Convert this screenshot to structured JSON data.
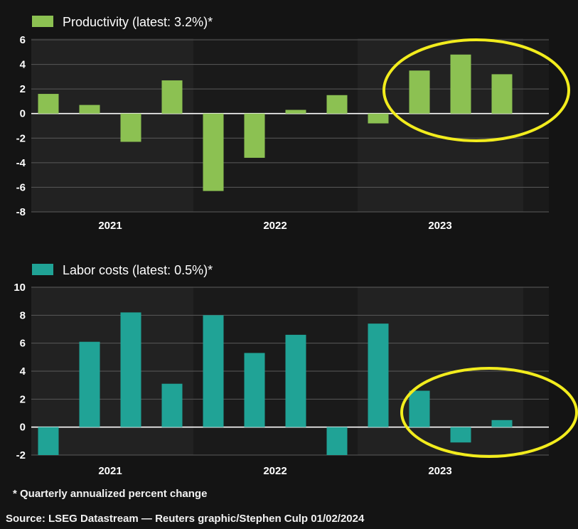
{
  "chart_data": [
    {
      "type": "bar",
      "title": "Productivity (latest: 3.2%)*",
      "legend": "top-left",
      "color": "#8cc152",
      "grid": true,
      "ylim": [
        -8,
        6
      ],
      "yticks": [
        6,
        4,
        2,
        0,
        -2,
        -4,
        -6,
        -8
      ],
      "year_labels": [
        "2021",
        "2022",
        "2023"
      ],
      "series": [
        {
          "name": "Productivity (latest: 3.2%)*",
          "values": [
            1.6,
            0.7,
            -2.3,
            2.7,
            -6.3,
            -3.6,
            0.3,
            1.5,
            -0.8,
            3.5,
            4.8,
            3.2
          ]
        }
      ],
      "highlight": "2023 Q2-Q4 circled in yellow"
    },
    {
      "type": "bar",
      "title": "Labor costs (latest: 0.5%)*",
      "legend": "top-left",
      "color": "#20a396",
      "grid": true,
      "ylim": [
        -2,
        10
      ],
      "yticks": [
        10,
        8,
        6,
        4,
        2,
        0,
        -2
      ],
      "year_labels": [
        "2021",
        "2022",
        "2023"
      ],
      "series": [
        {
          "name": "Labor costs (latest: 0.5%)*",
          "values": [
            -2.0,
            6.1,
            8.2,
            3.1,
            8.0,
            5.3,
            6.6,
            -2.0,
            7.4,
            2.6,
            -1.1,
            0.5
          ]
        }
      ],
      "highlight": "2023 Q2-Q4 circled in yellow"
    }
  ],
  "footnote": "* Quarterly annualized percent change",
  "source": "Source: LSEG Datastream — Reuters graphic/Stephen Culp  01/02/2024"
}
